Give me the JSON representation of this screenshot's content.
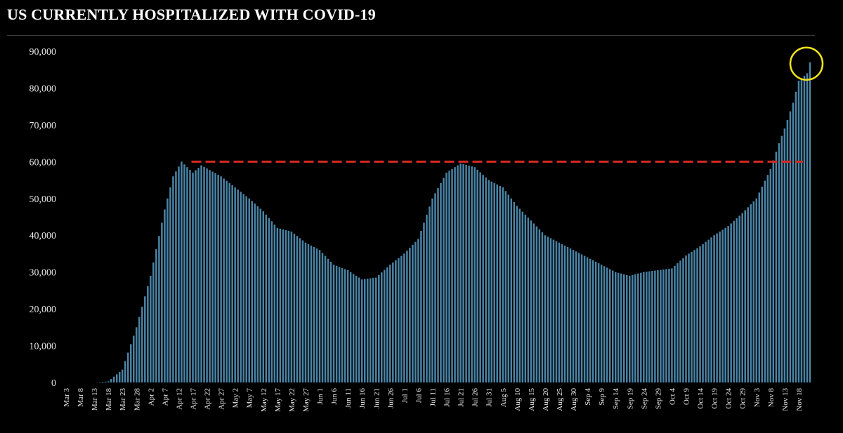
{
  "page": {
    "title": "US CURRENTLY HOSPITALIZED WITH COVID-19"
  },
  "colors": {
    "background": "#000000",
    "bar": "#4a84a6",
    "bar_highlight": "#6aa6c8",
    "reference_line": "#d42a22",
    "circle": "#f2e21a",
    "text": "#e8e8e8"
  },
  "chart_data": {
    "type": "bar",
    "title": "US CURRENTLY HOSPITALIZED WITH COVID-19",
    "xlabel": "",
    "ylabel": "",
    "ylim": [
      0,
      90000
    ],
    "y_ticks": [
      0,
      10000,
      20000,
      30000,
      40000,
      50000,
      60000,
      70000,
      80000,
      90000
    ],
    "y_tick_labels": [
      "0",
      "10,000",
      "20,000",
      "30,000",
      "40,000",
      "50,000",
      "60,000",
      "70,000",
      "80,000",
      "90,000"
    ],
    "x_tick_labels": [
      "Mar 3",
      "Mar 8",
      "Mar 13",
      "Mar 18",
      "Mar 23",
      "Mar 28",
      "Apr 2",
      "Apr 7",
      "Apr 12",
      "Apr 17",
      "Apr 22",
      "Apr 27",
      "May 2",
      "May 7",
      "May 12",
      "May 17",
      "May 22",
      "May 27",
      "Jun 1",
      "Jun 6",
      "Jun 11",
      "Jun 16",
      "Jun 21",
      "Jun 26",
      "Jul 1",
      "Jul 6",
      "Jul 11",
      "Jul 16",
      "Jul 21",
      "Jul 26",
      "Jul 31",
      "Aug 5",
      "Aug 10",
      "Aug 15",
      "Aug 20",
      "Aug 25",
      "Aug 30",
      "Sep 4",
      "Sep 9",
      "Sep 14",
      "Sep 19",
      "Sep 24",
      "Sep 29",
      "Oct 4",
      "Oct 9",
      "Oct 14",
      "Oct 19",
      "Oct 24",
      "Oct 29",
      "Nov 3",
      "Nov 8",
      "Nov 13",
      "Nov 18"
    ],
    "series": [
      {
        "name": "Currently hospitalized",
        "anchors": [
          [
            "Mar 3",
            0
          ],
          [
            "Mar 13",
            0
          ],
          [
            "Mar 18",
            300
          ],
          [
            "Mar 23",
            3500
          ],
          [
            "Mar 28",
            15000
          ],
          [
            "Apr 2",
            29000
          ],
          [
            "Apr 7",
            47000
          ],
          [
            "Apr 10",
            56000
          ],
          [
            "Apr 13",
            60000
          ],
          [
            "Apr 17",
            57000
          ],
          [
            "Apr 20",
            59000
          ],
          [
            "Apr 27",
            56000
          ],
          [
            "May 2",
            53000
          ],
          [
            "May 7",
            50000
          ],
          [
            "May 12",
            46500
          ],
          [
            "May 17",
            42000
          ],
          [
            "May 22",
            41000
          ],
          [
            "May 27",
            38000
          ],
          [
            "Jun 1",
            36000
          ],
          [
            "Jun 6",
            32000
          ],
          [
            "Jun 11",
            30500
          ],
          [
            "Jun 16",
            28000
          ],
          [
            "Jun 21",
            28500
          ],
          [
            "Jun 26",
            32000
          ],
          [
            "Jul 1",
            35000
          ],
          [
            "Jul 6",
            39000
          ],
          [
            "Jul 11",
            50000
          ],
          [
            "Jul 16",
            57000
          ],
          [
            "Jul 21",
            59500
          ],
          [
            "Jul 26",
            58500
          ],
          [
            "Jul 31",
            55000
          ],
          [
            "Aug 5",
            53000
          ],
          [
            "Aug 10",
            48000
          ],
          [
            "Aug 15",
            44000
          ],
          [
            "Aug 20",
            40000
          ],
          [
            "Aug 25",
            38000
          ],
          [
            "Aug 30",
            36000
          ],
          [
            "Sep 4",
            34000
          ],
          [
            "Sep 9",
            32000
          ],
          [
            "Sep 14",
            30000
          ],
          [
            "Sep 19",
            29000
          ],
          [
            "Sep 24",
            30000
          ],
          [
            "Sep 29",
            30500
          ],
          [
            "Oct 4",
            31000
          ],
          [
            "Oct 9",
            34500
          ],
          [
            "Oct 14",
            37000
          ],
          [
            "Oct 19",
            40000
          ],
          [
            "Oct 24",
            42500
          ],
          [
            "Oct 29",
            46000
          ],
          [
            "Nov 3",
            50000
          ],
          [
            "Nov 8",
            58000
          ],
          [
            "Nov 11",
            65000
          ],
          [
            "Nov 13",
            69000
          ],
          [
            "Nov 16",
            76000
          ],
          [
            "Nov 18",
            82000
          ],
          [
            "Nov 21",
            84000
          ],
          [
            "Nov 22",
            87000
          ]
        ]
      }
    ],
    "reference_line": {
      "value": 60000,
      "from": "Apr 17",
      "to": "Nov 22",
      "style": "dashed"
    },
    "annotation": {
      "type": "circle",
      "at": "Nov 22"
    }
  }
}
